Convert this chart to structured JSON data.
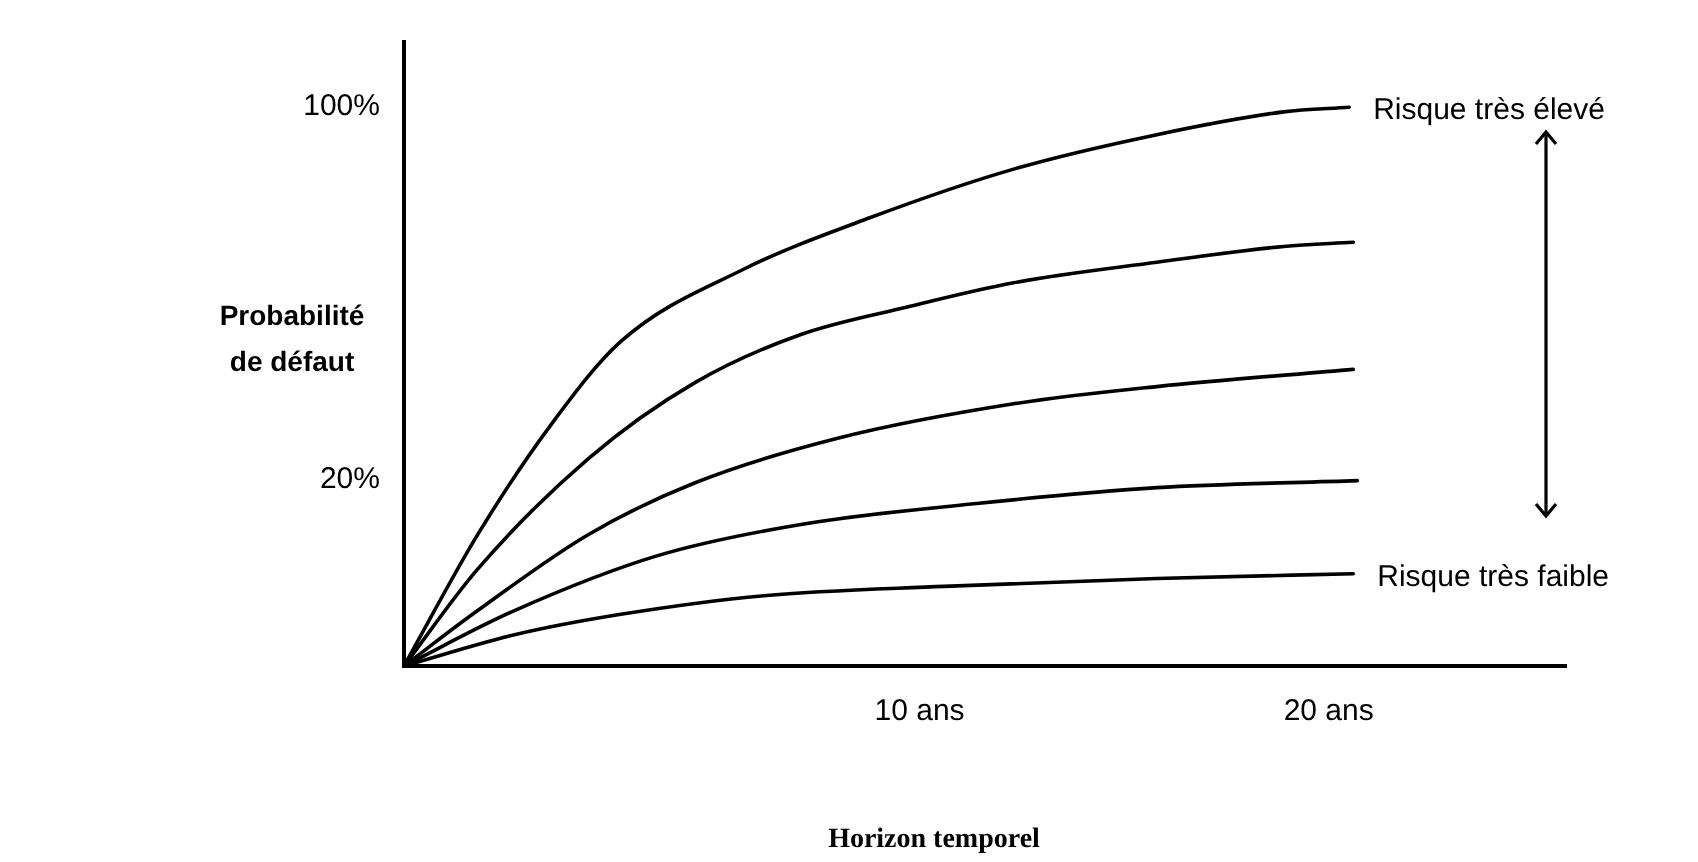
{
  "chart_data": {
    "type": "line",
    "xlabel": "Horizon temporel",
    "ylabel": "Probabilité\nde défaut",
    "xlim": [
      -2.6,
      25.8
    ],
    "ylim": [
      -20,
      114
    ],
    "xticks": [
      {
        "value": 10,
        "label": "10 ans"
      },
      {
        "value": 20,
        "label": "20 ans"
      }
    ],
    "yticks": [
      {
        "value": 20,
        "label": "20%"
      },
      {
        "value": 100,
        "label": "100%"
      }
    ],
    "grid": false,
    "legend": false,
    "marker": "none",
    "line_style": "solid",
    "annotations": [
      "Risque très élevé",
      "Risque très faible"
    ],
    "series": [
      {
        "color": "#000000",
        "x": [
          -2.6,
          -0.8,
          1.0,
          2.7,
          5.7,
          8.8,
          12.3,
          15.8,
          18.9,
          20.5
        ],
        "values": [
          -20,
          8.2,
          31.9,
          49.7,
          65.2,
          76.3,
          86.7,
          94.1,
          99.0,
          100
        ]
      },
      {
        "color": "#000000",
        "x": [
          -2.6,
          -0.8,
          1.9,
          4.5,
          7.1,
          9.7,
          12.3,
          15.8,
          18.9,
          20.6
        ],
        "values": [
          -20,
          0.8,
          24.5,
          40.8,
          51.2,
          57.1,
          62.3,
          66.7,
          70.1,
          71.0
        ]
      },
      {
        "color": "#000000",
        "x": [
          -2.6,
          -0.8,
          1.9,
          4.5,
          8.0,
          12.3,
          15.8,
          20.6
        ],
        "values": [
          -20,
          -8.1,
          8.2,
          19.3,
          28.9,
          36.3,
          40.0,
          43.7
        ]
      },
      {
        "color": "#000000",
        "x": [
          -2.6,
          0.1,
          3.6,
          7.1,
          11.4,
          15.8,
          20.7
        ],
        "values": [
          -20,
          -8.1,
          3.7,
          10.4,
          14.9,
          18.3,
          19.8
        ]
      },
      {
        "color": "#000000",
        "x": [
          -2.6,
          0.1,
          2.7,
          6.2,
          10.6,
          15.8,
          20.6
        ],
        "values": [
          -20,
          -13.3,
          -8.9,
          -4.9,
          -2.9,
          -1.2,
          -0.2
        ]
      }
    ]
  }
}
